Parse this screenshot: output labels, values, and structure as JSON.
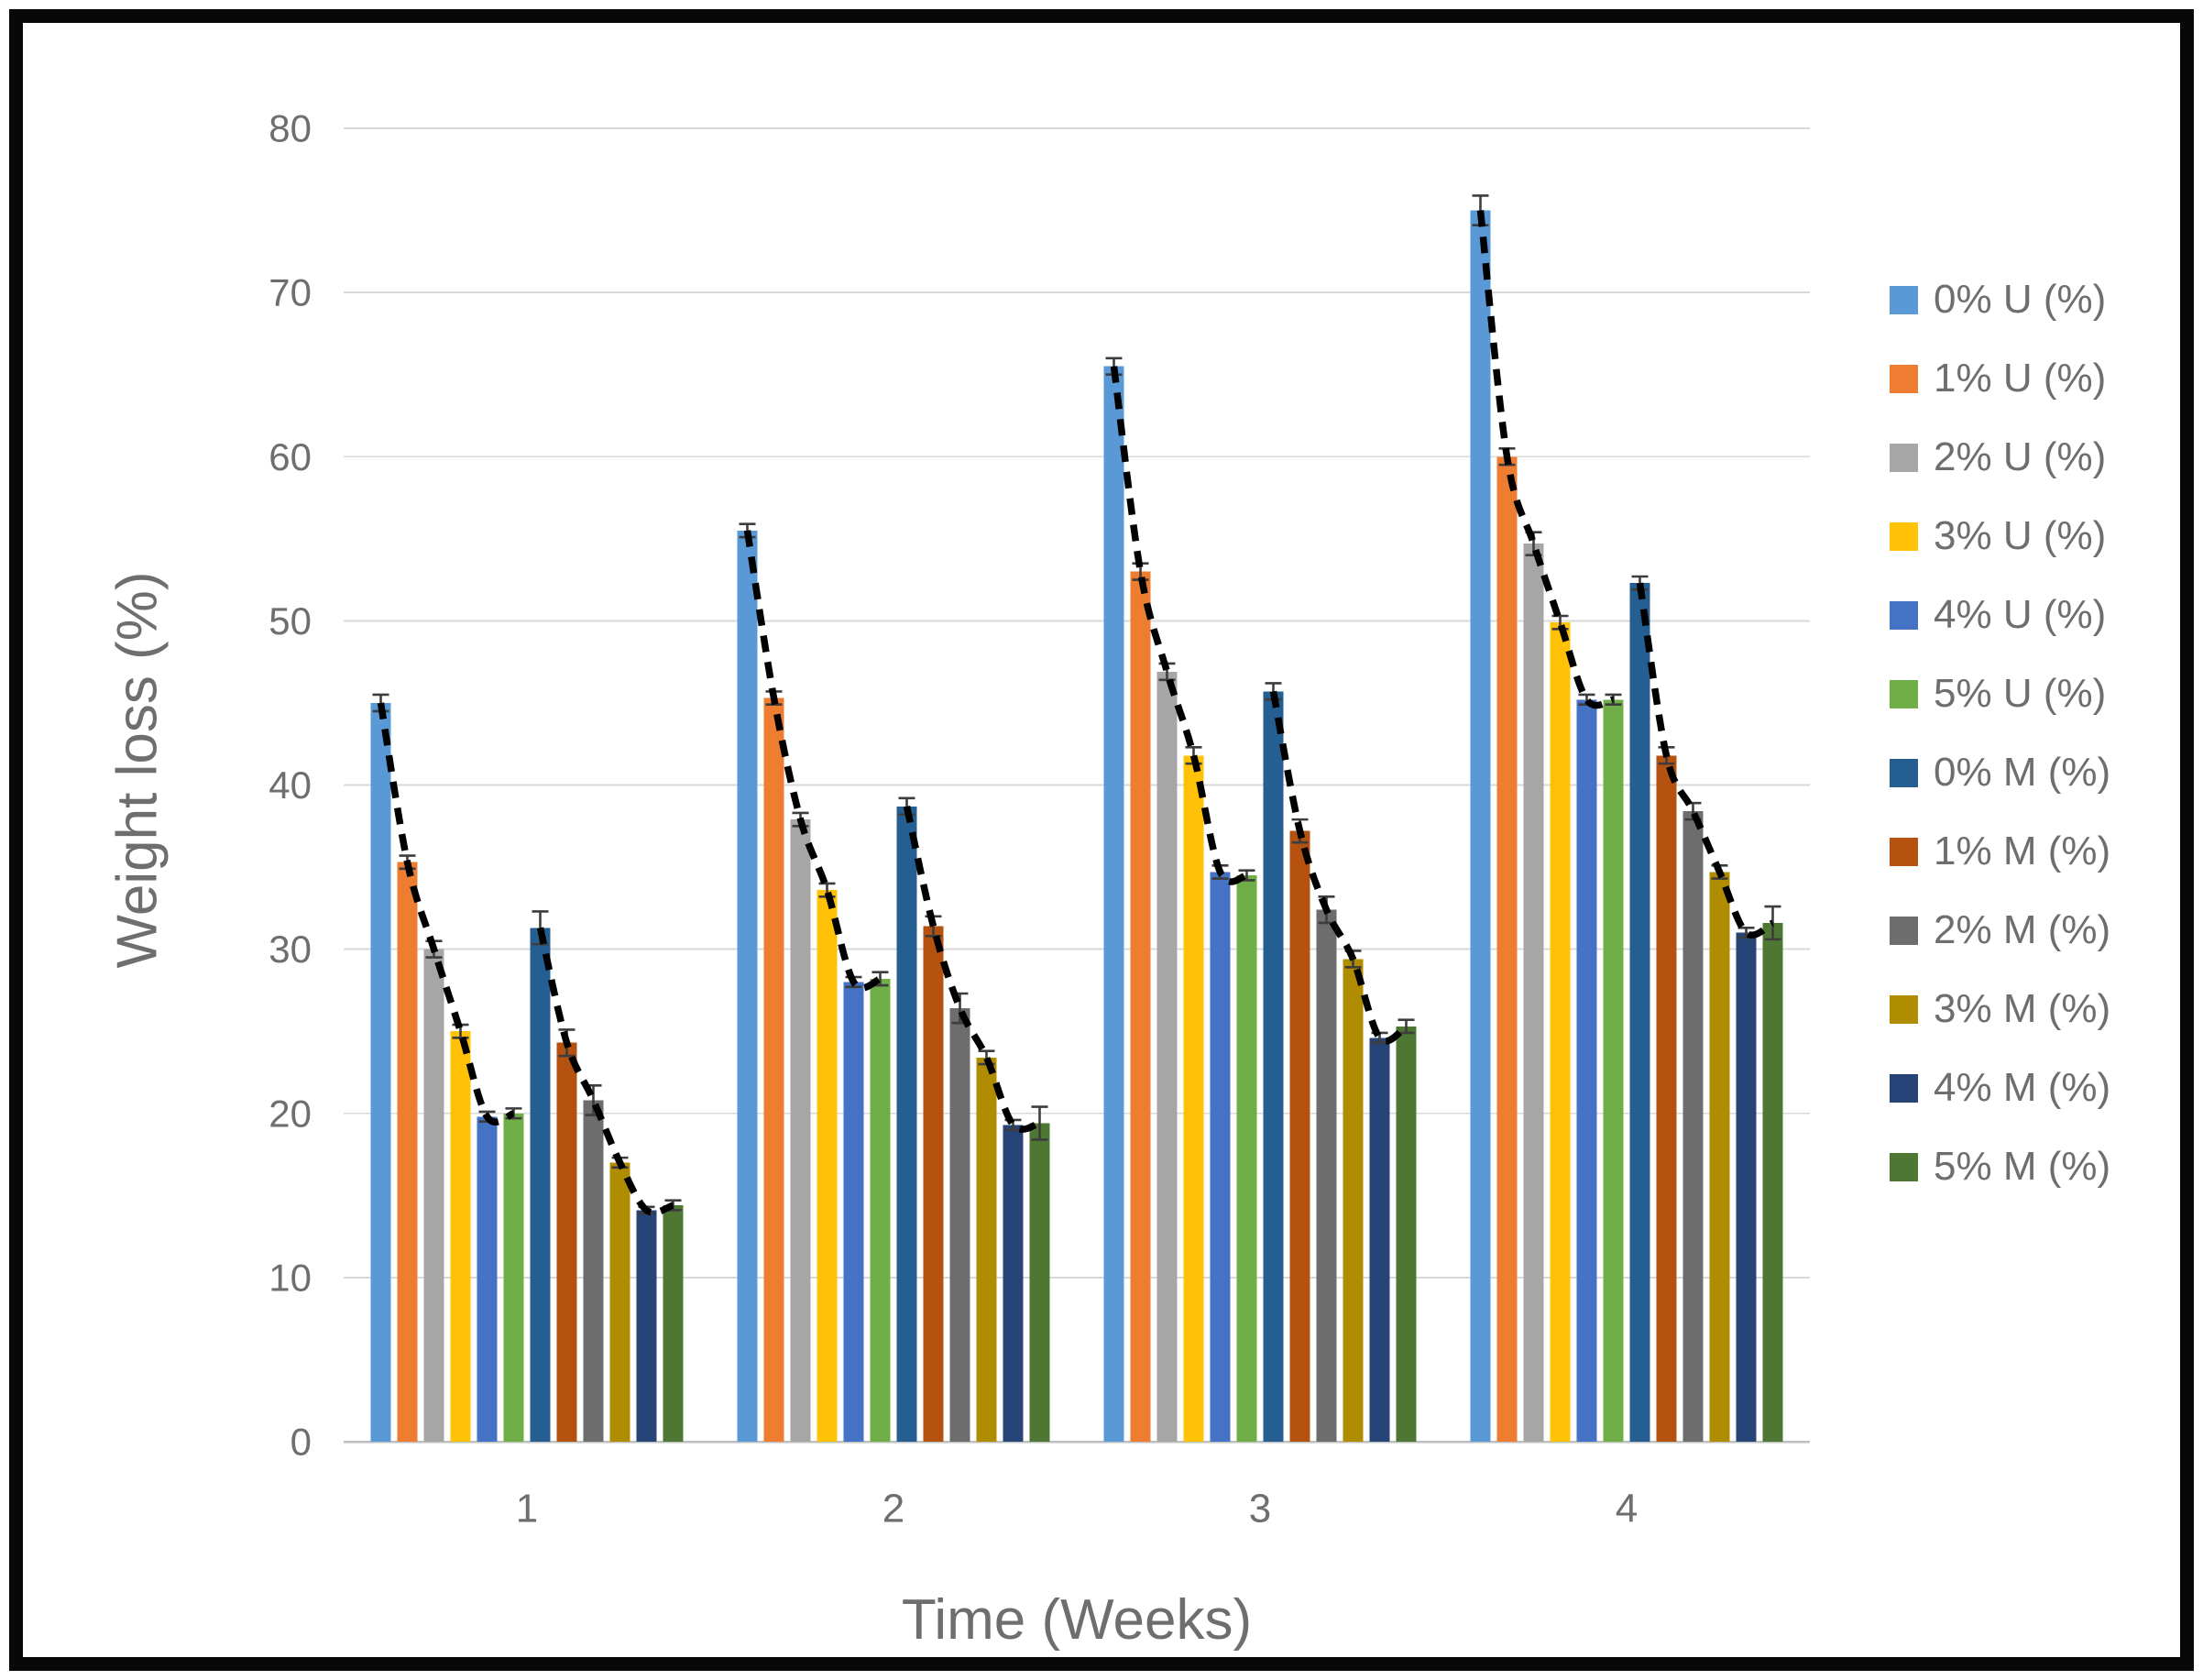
{
  "chart_data": {
    "type": "bar",
    "title": "",
    "xlabel": "Time (Weeks)",
    "ylabel": "Weight loss (%)",
    "categories": [
      "1",
      "2",
      "3",
      "4"
    ],
    "ylim": [
      0,
      80
    ],
    "ytick_step": 10,
    "grid": true,
    "legend_position": "right",
    "series": [
      {
        "name": "0% U (%)",
        "color": "#599AD6",
        "values": [
          45.0,
          55.5,
          65.5,
          75.0
        ],
        "errors": [
          0.5,
          0.4,
          0.5,
          0.9
        ]
      },
      {
        "name": "1% U (%)",
        "color": "#EE7D31",
        "values": [
          35.3,
          45.3,
          53.0,
          60.0
        ],
        "errors": [
          0.4,
          0.4,
          0.5,
          0.5
        ]
      },
      {
        "name": "2% U (%)",
        "color": "#A6A6A6",
        "values": [
          30.0,
          37.9,
          46.9,
          54.7
        ],
        "errors": [
          0.5,
          0.4,
          0.5,
          0.7
        ]
      },
      {
        "name": "3% U (%)",
        "color": "#FFC207",
        "values": [
          25.0,
          33.6,
          41.8,
          49.9
        ],
        "errors": [
          0.4,
          0.4,
          0.5,
          0.4
        ]
      },
      {
        "name": "4% U (%)",
        "color": "#4472C4",
        "values": [
          19.8,
          28.0,
          34.7,
          45.2
        ],
        "errors": [
          0.3,
          0.3,
          0.4,
          0.3
        ]
      },
      {
        "name": "5% U (%)",
        "color": "#6FAD46",
        "values": [
          20.0,
          28.2,
          34.5,
          45.2
        ],
        "errors": [
          0.3,
          0.4,
          0.3,
          0.3
        ]
      },
      {
        "name": "0% M (%)",
        "color": "#255E91",
        "values": [
          31.3,
          38.7,
          45.7,
          52.3
        ],
        "errors": [
          1.0,
          0.5,
          0.5,
          0.4
        ]
      },
      {
        "name": "1% M (%)",
        "color": "#B5520F",
        "values": [
          24.3,
          31.4,
          37.2,
          41.8
        ],
        "errors": [
          0.8,
          0.6,
          0.7,
          0.5
        ]
      },
      {
        "name": "2% M (%)",
        "color": "#6D6D6D",
        "values": [
          20.8,
          26.4,
          32.4,
          38.4
        ],
        "errors": [
          0.9,
          0.9,
          0.8,
          0.5
        ]
      },
      {
        "name": "3% M (%)",
        "color": "#B08D00",
        "values": [
          17.0,
          23.4,
          29.4,
          34.7
        ],
        "errors": [
          0.3,
          0.4,
          0.5,
          0.4
        ]
      },
      {
        "name": "4% M (%)",
        "color": "#264478",
        "values": [
          14.1,
          19.3,
          24.6,
          31.0
        ],
        "errors": [
          0.2,
          0.3,
          0.3,
          0.3
        ]
      },
      {
        "name": "5% M (%)",
        "color": "#4E7733",
        "values": [
          14.4,
          19.4,
          25.3,
          31.6
        ],
        "errors": [
          0.3,
          1.0,
          0.4,
          1.0
        ]
      }
    ],
    "trendlines": [
      {
        "series_start": 0,
        "series_end": 5,
        "style": "dashed",
        "color": "#000000"
      },
      {
        "series_start": 6,
        "series_end": 11,
        "style": "dashed",
        "color": "#000000"
      }
    ],
    "style": {
      "axis_text_color": "#6e6e6e",
      "gridline_color": "#D9D9D9",
      "axis_line_color": "#BFBFBF",
      "error_bar_color": "#3d3d3d",
      "frame_color": "#080808",
      "background": "#ffffff"
    }
  }
}
